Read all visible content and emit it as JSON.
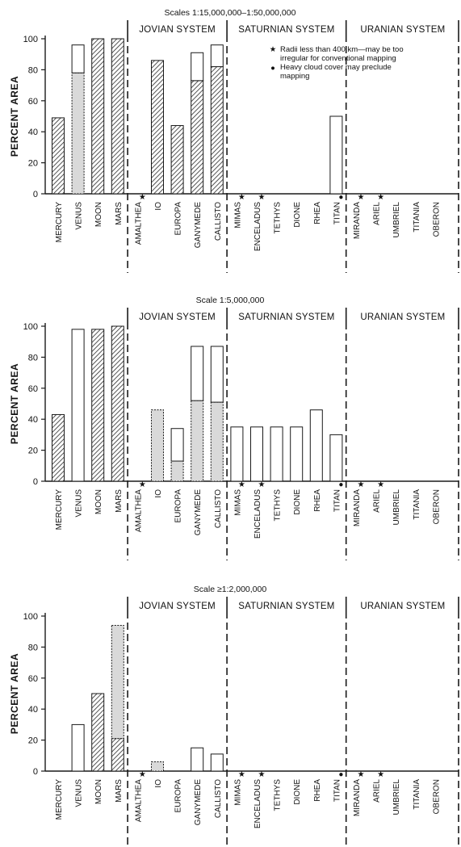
{
  "y_axis_label": "PERCENT AREA",
  "systems": [
    "JOVIAN SYSTEM",
    "SATURNIAN SYSTEM",
    "URANIAN SYSTEM"
  ],
  "categories": [
    "MERCURY",
    "VENUS",
    "MOON",
    "MARS",
    "AMALTHEA",
    "IO",
    "EUROPA",
    "GANYMEDE",
    "CALLISTO",
    "MIMAS",
    "ENCELADUS",
    "TETHYS",
    "DIONE",
    "RHEA",
    "TITAN",
    "MIRANDA",
    "ARIEL",
    "UMBRIEL",
    "TITANIA",
    "OBERON"
  ],
  "markers": {
    "star_bodies": [
      "AMALTHEA",
      "MIMAS",
      "ENCELADUS",
      "MIRANDA",
      "ARIEL"
    ],
    "dot_bodies": [
      "TITAN"
    ],
    "star_glyph": "★",
    "dot_glyph": "●"
  },
  "legend": {
    "star_text_1": "Radii less than 400 km—may be too",
    "star_text_2": "irregular for conventional mapping",
    "dot_text_1": "Heavy cloud cover may preclude",
    "dot_text_2": "mapping"
  },
  "colors": {
    "ink": "#1a1a1a",
    "hatch": "#2a2a2a",
    "shade": "#d9d9d9",
    "blank": "#ffffff"
  },
  "chart_data": [
    {
      "type": "bar",
      "title": "Scales 1:15,000,000–1:50,000,000",
      "ylabel": "PERCENT AREA",
      "ylim": [
        0,
        100
      ],
      "yticks": [
        0,
        20,
        40,
        60,
        80,
        100
      ],
      "categories": [
        "MERCURY",
        "VENUS",
        "MOON",
        "MARS",
        "AMALTHEA",
        "IO",
        "EUROPA",
        "GANYMEDE",
        "CALLISTO",
        "MIMAS",
        "ENCELADUS",
        "TETHYS",
        "DIONE",
        "RHEA",
        "TITAN",
        "MIRANDA",
        "ARIEL",
        "UMBRIEL",
        "TITANIA",
        "OBERON"
      ],
      "series": [
        {
          "fill": "hatched",
          "values": [
            49,
            0,
            100,
            100,
            0,
            86,
            44,
            73,
            82,
            0,
            0,
            0,
            0,
            0,
            0,
            0,
            0,
            0,
            0,
            0
          ]
        },
        {
          "fill": "shaded",
          "values": [
            0,
            78,
            0,
            0,
            0,
            0,
            0,
            0,
            0,
            0,
            0,
            0,
            0,
            0,
            0,
            0,
            0,
            0,
            0,
            0
          ]
        },
        {
          "fill": "open",
          "values": [
            0,
            18,
            0,
            0,
            0,
            0,
            0,
            18,
            14,
            0,
            0,
            0,
            0,
            0,
            50,
            0,
            0,
            0,
            0,
            0
          ]
        }
      ]
    },
    {
      "type": "bar",
      "title": "Scale 1:5,000,000",
      "ylabel": "PERCENT AREA",
      "ylim": [
        0,
        100
      ],
      "yticks": [
        0,
        20,
        40,
        60,
        80,
        100
      ],
      "categories": [
        "MERCURY",
        "VENUS",
        "MOON",
        "MARS",
        "AMALTHEA",
        "IO",
        "EUROPA",
        "GANYMEDE",
        "CALLISTO",
        "MIMAS",
        "ENCELADUS",
        "TETHYS",
        "DIONE",
        "RHEA",
        "TITAN",
        "MIRANDA",
        "ARIEL",
        "UMBRIEL",
        "TITANIA",
        "OBERON"
      ],
      "series": [
        {
          "fill": "hatched",
          "values": [
            43,
            0,
            98,
            100,
            0,
            0,
            0,
            0,
            0,
            0,
            0,
            0,
            0,
            0,
            0,
            0,
            0,
            0,
            0,
            0
          ]
        },
        {
          "fill": "shaded",
          "values": [
            0,
            0,
            0,
            0,
            0,
            46,
            13,
            52,
            51,
            0,
            0,
            0,
            0,
            0,
            0,
            0,
            0,
            0,
            0,
            0
          ]
        },
        {
          "fill": "open",
          "values": [
            0,
            98,
            0,
            0,
            0,
            0,
            21,
            35,
            36,
            35,
            35,
            35,
            35,
            46,
            30,
            0,
            0,
            0,
            0,
            0
          ]
        }
      ]
    },
    {
      "type": "bar",
      "title": "Scale ≥1:2,000,000",
      "ylabel": "PERCENT AREA",
      "ylim": [
        0,
        100
      ],
      "yticks": [
        0,
        20,
        40,
        60,
        80,
        100
      ],
      "categories": [
        "MERCURY",
        "VENUS",
        "MOON",
        "MARS",
        "AMALTHEA",
        "IO",
        "EUROPA",
        "GANYMEDE",
        "CALLISTO",
        "MIMAS",
        "ENCELADUS",
        "TETHYS",
        "DIONE",
        "RHEA",
        "TITAN",
        "MIRANDA",
        "ARIEL",
        "UMBRIEL",
        "TITANIA",
        "OBERON"
      ],
      "series": [
        {
          "fill": "hatched",
          "values": [
            0,
            0,
            50,
            21,
            0,
            0,
            0,
            0,
            0,
            0,
            0,
            0,
            0,
            0,
            0,
            0,
            0,
            0,
            0,
            0
          ]
        },
        {
          "fill": "shaded",
          "values": [
            0,
            0,
            0,
            73,
            0,
            6,
            0,
            0,
            0,
            0,
            0,
            0,
            0,
            0,
            0,
            0,
            0,
            0,
            0,
            0
          ]
        },
        {
          "fill": "open",
          "values": [
            0,
            30,
            0,
            0,
            0,
            0,
            0,
            15,
            11,
            0,
            0,
            0,
            0,
            0,
            0,
            0,
            0,
            0,
            0,
            0
          ]
        }
      ]
    }
  ]
}
